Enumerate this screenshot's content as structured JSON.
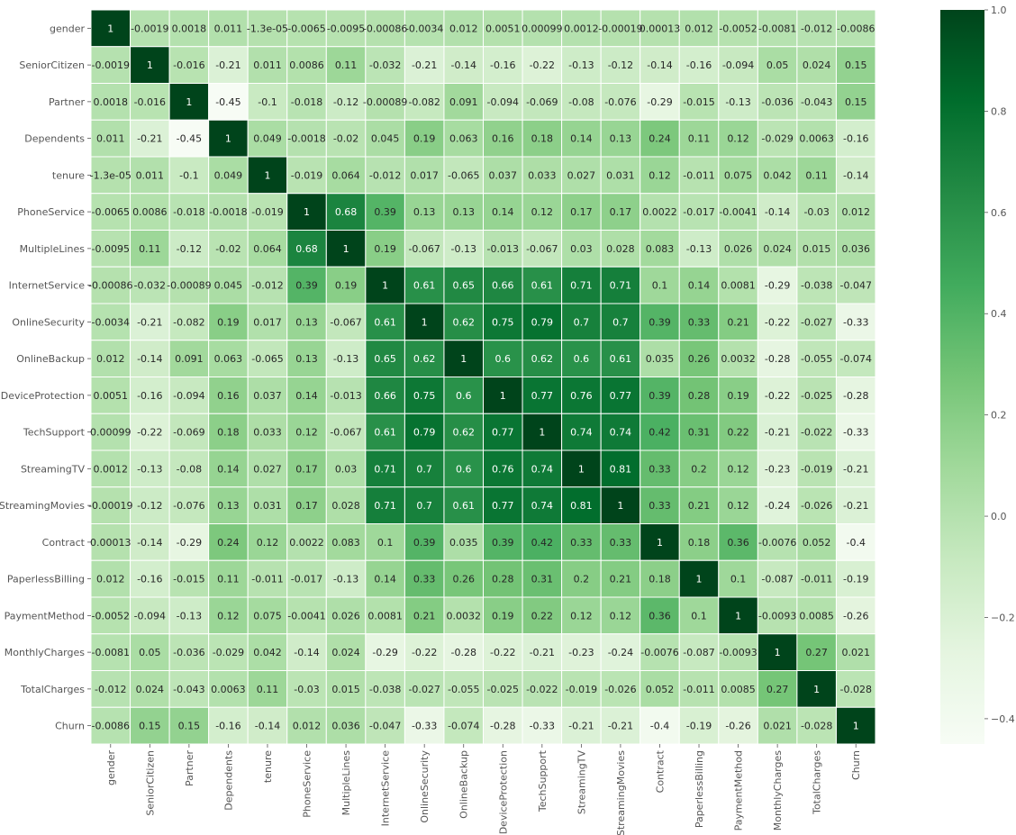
{
  "chart_data": {
    "type": "heatmap",
    "title": "",
    "xlabel": "",
    "ylabel": "",
    "labels": [
      "gender",
      "SeniorCitizen",
      "Partner",
      "Dependents",
      "tenure",
      "PhoneService",
      "MultipleLines",
      "InternetService",
      "OnlineSecurity",
      "OnlineBackup",
      "DeviceProtection",
      "TechSupport",
      "StreamingTV",
      "StreamingMovies",
      "Contract",
      "PaperlessBilling",
      "PaymentMethod",
      "MonthlyCharges",
      "TotalCharges",
      "Churn"
    ],
    "values": [
      [
        1,
        -0.0019,
        0.0018,
        0.011,
        -1.3e-05,
        -0.0065,
        -0.0095,
        -0.00086,
        -0.0034,
        0.012,
        0.0051,
        0.00099,
        0.0012,
        -0.00019,
        0.00013,
        0.012,
        -0.0052,
        -0.0081,
        -0.012,
        -0.0086
      ],
      [
        -0.0019,
        1,
        -0.016,
        -0.21,
        0.011,
        0.0086,
        0.11,
        -0.032,
        -0.21,
        -0.14,
        -0.16,
        -0.22,
        -0.13,
        -0.12,
        -0.14,
        -0.16,
        -0.094,
        0.05,
        0.024,
        0.15
      ],
      [
        0.0018,
        -0.016,
        1,
        -0.45,
        -0.1,
        -0.018,
        -0.12,
        -0.00089,
        -0.082,
        0.091,
        -0.094,
        -0.069,
        -0.08,
        -0.076,
        -0.29,
        -0.015,
        -0.13,
        -0.036,
        -0.043,
        0.15
      ],
      [
        0.011,
        -0.21,
        -0.45,
        1,
        0.049,
        -0.0018,
        -0.02,
        0.045,
        0.19,
        0.063,
        0.16,
        0.18,
        0.14,
        0.13,
        0.24,
        0.11,
        0.12,
        -0.029,
        0.0063,
        -0.16
      ],
      [
        -1.3e-05,
        0.011,
        -0.1,
        0.049,
        1,
        -0.019,
        0.064,
        -0.012,
        0.017,
        -0.065,
        0.037,
        0.033,
        0.027,
        0.031,
        0.12,
        -0.011,
        0.075,
        0.042,
        0.11,
        -0.14
      ],
      [
        -0.0065,
        0.0086,
        -0.018,
        -0.0018,
        -0.019,
        1,
        0.68,
        0.39,
        0.13,
        0.13,
        0.14,
        0.12,
        0.17,
        0.17,
        0.0022,
        -0.017,
        -0.0041,
        -0.14,
        -0.03,
        0.012
      ],
      [
        -0.0095,
        0.11,
        -0.12,
        -0.02,
        0.064,
        0.68,
        1,
        0.19,
        -0.067,
        -0.13,
        -0.013,
        -0.067,
        0.03,
        0.028,
        0.083,
        -0.13,
        0.026,
        0.024,
        0.015,
        0.036
      ],
      [
        -0.00086,
        -0.032,
        -0.00089,
        0.045,
        -0.012,
        0.39,
        0.19,
        1,
        0.61,
        0.65,
        0.66,
        0.61,
        0.71,
        0.71,
        0.1,
        0.14,
        0.0081,
        -0.29,
        -0.038,
        -0.047
      ],
      [
        -0.0034,
        -0.21,
        -0.082,
        0.19,
        0.017,
        0.13,
        -0.067,
        0.61,
        1,
        0.62,
        0.75,
        0.79,
        0.7,
        0.7,
        0.39,
        0.33,
        0.21,
        -0.22,
        -0.027,
        -0.33
      ],
      [
        0.012,
        -0.14,
        0.091,
        0.063,
        -0.065,
        0.13,
        -0.13,
        0.65,
        0.62,
        1,
        0.6,
        0.62,
        0.6,
        0.61,
        0.035,
        0.26,
        0.0032,
        -0.28,
        -0.055,
        -0.074
      ],
      [
        0.0051,
        -0.16,
        -0.094,
        0.16,
        0.037,
        0.14,
        -0.013,
        0.66,
        0.75,
        0.6,
        1,
        0.77,
        0.76,
        0.77,
        0.39,
        0.28,
        0.19,
        -0.22,
        -0.025,
        -0.28
      ],
      [
        0.00099,
        -0.22,
        -0.069,
        0.18,
        0.033,
        0.12,
        -0.067,
        0.61,
        0.79,
        0.62,
        0.77,
        1,
        0.74,
        0.74,
        0.42,
        0.31,
        0.22,
        -0.21,
        -0.022,
        -0.33
      ],
      [
        0.0012,
        -0.13,
        -0.08,
        0.14,
        0.027,
        0.17,
        0.03,
        0.71,
        0.7,
        0.6,
        0.76,
        0.74,
        1,
        0.81,
        0.33,
        0.2,
        0.12,
        -0.23,
        -0.019,
        -0.21
      ],
      [
        -0.00019,
        -0.12,
        -0.076,
        0.13,
        0.031,
        0.17,
        0.028,
        0.71,
        0.7,
        0.61,
        0.77,
        0.74,
        0.81,
        1,
        0.33,
        0.21,
        0.12,
        -0.24,
        -0.026,
        -0.21
      ],
      [
        0.00013,
        -0.14,
        -0.29,
        0.24,
        0.12,
        0.0022,
        0.083,
        0.1,
        0.39,
        0.035,
        0.39,
        0.42,
        0.33,
        0.33,
        1,
        0.18,
        0.36,
        -0.0076,
        0.052,
        -0.4
      ],
      [
        0.012,
        -0.16,
        -0.015,
        0.11,
        -0.011,
        -0.017,
        -0.13,
        0.14,
        0.33,
        0.26,
        0.28,
        0.31,
        0.2,
        0.21,
        0.18,
        1,
        0.1,
        -0.087,
        -0.011,
        -0.19
      ],
      [
        -0.0052,
        -0.094,
        -0.13,
        0.12,
        0.075,
        -0.0041,
        0.026,
        0.0081,
        0.21,
        0.0032,
        0.19,
        0.22,
        0.12,
        0.12,
        0.36,
        0.1,
        1,
        -0.0093,
        0.0085,
        -0.26
      ],
      [
        -0.0081,
        0.05,
        -0.036,
        -0.029,
        0.042,
        -0.14,
        0.024,
        -0.29,
        -0.22,
        -0.28,
        -0.22,
        -0.21,
        -0.23,
        -0.24,
        -0.0076,
        -0.087,
        -0.0093,
        1,
        0.27,
        0.021
      ],
      [
        -0.012,
        0.024,
        -0.043,
        0.0063,
        0.11,
        -0.03,
        0.015,
        -0.038,
        -0.027,
        -0.055,
        -0.025,
        -0.022,
        -0.019,
        -0.026,
        0.052,
        -0.011,
        0.0085,
        0.27,
        1,
        -0.028
      ],
      [
        -0.0086,
        0.15,
        0.15,
        -0.16,
        -0.14,
        0.012,
        0.036,
        -0.047,
        -0.33,
        -0.074,
        -0.28,
        -0.33,
        -0.21,
        -0.21,
        -0.4,
        -0.19,
        -0.26,
        0.021,
        -0.028,
        1
      ]
    ],
    "colorscale": "Greens",
    "vmin": -0.45,
    "vmax": 1,
    "colorbar_ticks": [
      1.0,
      0.8,
      0.6,
      0.4,
      0.2,
      0.0,
      -0.2,
      -0.4
    ],
    "colorbar_tick_labels": [
      "1.0",
      "0.8",
      "0.6",
      "0.4",
      "0.2",
      "0.0",
      "−0.2",
      "−0.4"
    ],
    "grid": false,
    "legend": "colorbar-right"
  }
}
